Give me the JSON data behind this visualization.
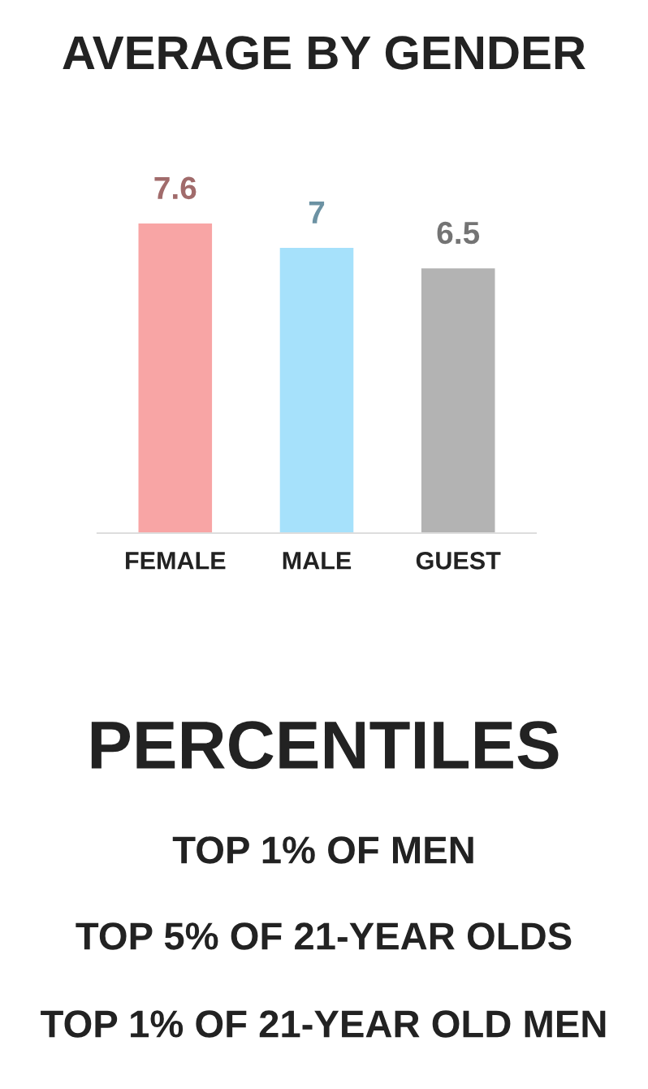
{
  "chart_data": {
    "type": "bar",
    "title": "AVERAGE BY GENDER",
    "categories": [
      "FEMALE",
      "MALE",
      "GUEST"
    ],
    "values": [
      7.6,
      7,
      6.5
    ],
    "colors": [
      "#f8a5a5",
      "#a6e1fb",
      "#b3b3b3"
    ],
    "data_labels": true,
    "grid": false,
    "legend": false,
    "annotations": [
      "PERCENTILES",
      "TOP 1% OF MEN",
      "TOP 5% OF 21-YEAR OLDS",
      "TOP 1% OF 21-YEAR OLD MEN"
    ]
  }
}
